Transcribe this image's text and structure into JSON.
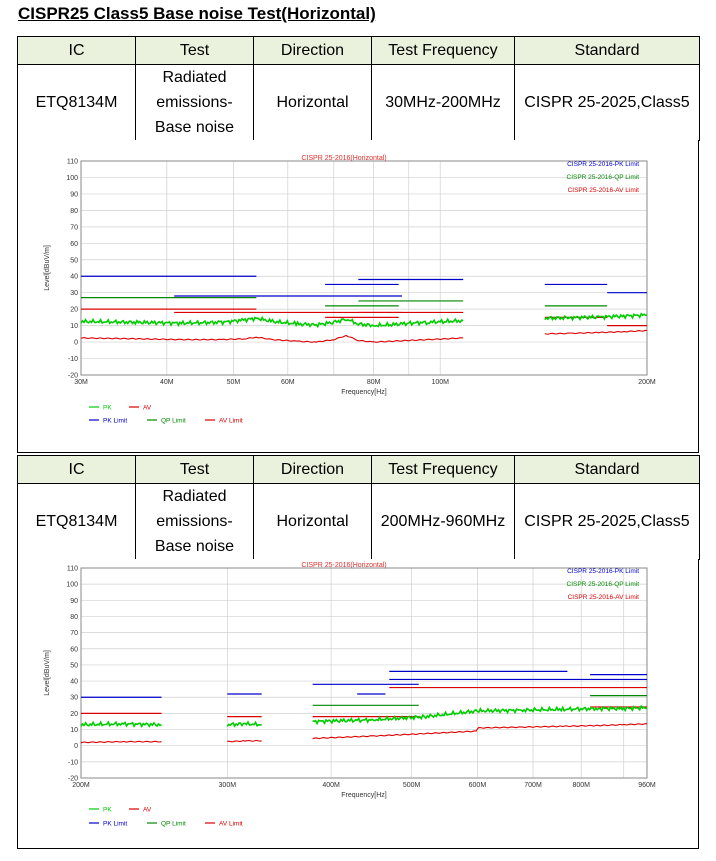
{
  "title": "CISPR25 Class5 Base noise Test(Horizontal)",
  "sections": [
    {
      "table": {
        "headers": [
          "IC",
          "Test",
          "Direction",
          "Test Frequency",
          "Standard"
        ],
        "row": {
          "ic": "ETQ8134M",
          "test": [
            "Radiated",
            "emissions-",
            "Base noise"
          ],
          "direction": "Horizontal",
          "frequency": "30MHz-200MHz",
          "standard": "CISPR 25-2025,Class5"
        }
      },
      "chart_data": {
        "type": "line",
        "title": "CISPR 25-2016(Horizontal)",
        "xlabel": "Frequency[Hz]",
        "ylabel": "Level[dBuV/m]",
        "x_scale": "log",
        "xlim": [
          30,
          200
        ],
        "ylim": [
          -20,
          110
        ],
        "x_ticks": [
          30,
          40,
          50,
          60,
          80,
          100,
          200
        ],
        "x_tick_labels": [
          "30M",
          "40M",
          "50M",
          "60M",
          "80M",
          "100M",
          "200M"
        ],
        "y_ticks": [
          -20,
          -10,
          0,
          10,
          20,
          30,
          40,
          50,
          60,
          70,
          80,
          90,
          100,
          110
        ],
        "grid": true,
        "legend_top_right": [
          "CISPR 25-2016-PK Limit",
          "CISPR 25-2016-QP Limit",
          "CISPR 25-2016-AV Limit"
        ],
        "legend_bottom": [
          "PK",
          "AV",
          "PK Limit",
          "QP Limit",
          "AV Limit"
        ],
        "colors": {
          "pk": "#00cc00",
          "av": "#dd0000",
          "pk_limit": "#0000cc",
          "qp_limit": "#008800",
          "av_limit": "#dd0000",
          "title": "#e03030",
          "grid": "#d0d0d0"
        },
        "limits": {
          "pk": [
            {
              "x": [
                30,
                54
              ],
              "y": 40
            },
            {
              "x": [
                41,
                88
              ],
              "y": 28
            },
            {
              "x": [
                68,
                87
              ],
              "y": 35
            },
            {
              "x": [
                76,
                108
              ],
              "y": 38
            },
            {
              "x": [
                142,
                175
              ],
              "y": 35
            },
            {
              "x": [
                175,
                200
              ],
              "y": 30
            }
          ],
          "qp": [
            {
              "x": [
                30,
                54
              ],
              "y": 27
            },
            {
              "x": [
                68,
                87
              ],
              "y": 22
            },
            {
              "x": [
                76,
                108
              ],
              "y": 25
            },
            {
              "x": [
                142,
                175
              ],
              "y": 22
            }
          ],
          "av": [
            {
              "x": [
                30,
                54
              ],
              "y": 20
            },
            {
              "x": [
                41,
                88
              ],
              "y": 18
            },
            {
              "x": [
                68,
                87
              ],
              "y": 15
            },
            {
              "x": [
                76,
                108
              ],
              "y": 18
            },
            {
              "x": [
                142,
                175
              ],
              "y": 15
            },
            {
              "x": [
                175,
                200
              ],
              "y": 10
            }
          ]
        },
        "series": [
          {
            "name": "PK",
            "segments": [
              {
                "x": [
                  30,
                  36,
                  42,
                  48,
                  52,
                  54,
                  57,
                  62,
                  66,
                  70,
                  73,
                  76,
                  80,
                  85,
                  90,
                  96,
                  102,
                  108
                ],
                "y": [
                  12.5,
                  12,
                  11.5,
                  12,
                  13.5,
                  14.5,
                  12.5,
                  11,
                  10.5,
                  12,
                  14,
                  11,
                  10,
                  10.5,
                  11.5,
                  12,
                  12.5,
                  13
                ]
              },
              {
                "x": [
                  142,
                  155,
                  170,
                  185,
                  200
                ],
                "y": [
                  14.5,
                  14.8,
                  15.2,
                  15.8,
                  16.5
                ]
              }
            ]
          },
          {
            "name": "AV",
            "segments": [
              {
                "x": [
                  30,
                  36,
                  42,
                  48,
                  52,
                  54,
                  57,
                  62,
                  66,
                  70,
                  73,
                  76,
                  80,
                  85,
                  90,
                  96,
                  102,
                  108
                ],
                "y": [
                  2.5,
                  2,
                  1.5,
                  1.5,
                  2,
                  3,
                  1.5,
                  0.5,
                  0,
                  1.5,
                  4,
                  1,
                  0,
                  0.5,
                  1,
                  1.5,
                  2,
                  2.5
                ]
              },
              {
                "x": [
                  142,
                  155,
                  170,
                  185,
                  200
                ],
                "y": [
                  5,
                  5.3,
                  5.8,
                  6.3,
                  7
                ]
              }
            ]
          }
        ]
      }
    },
    {
      "table": {
        "headers": [
          "IC",
          "Test",
          "Direction",
          "Test Frequency",
          "Standard"
        ],
        "row": {
          "ic": "ETQ8134M",
          "test": [
            "Radiated",
            "emissions-",
            "Base noise"
          ],
          "direction": "Horizontal",
          "frequency": "200MHz-960MHz",
          "standard": "CISPR 25-2025,Class5"
        }
      },
      "chart_data": {
        "type": "line",
        "title": "CISPR 25-2016(Horizontal)",
        "xlabel": "Frequency[Hz]",
        "ylabel": "Level[dBuV/m]",
        "x_scale": "log",
        "xlim": [
          200,
          960
        ],
        "ylim": [
          -20,
          110
        ],
        "x_ticks": [
          200,
          300,
          400,
          500,
          600,
          700,
          800,
          960
        ],
        "x_tick_labels": [
          "200M",
          "300M",
          "400M",
          "500M",
          "600M",
          "700M",
          "800M",
          "960M"
        ],
        "y_ticks": [
          -20,
          -10,
          0,
          10,
          20,
          30,
          40,
          50,
          60,
          70,
          80,
          90,
          100,
          110
        ],
        "grid": true,
        "legend_top_right": [
          "CISPR 25-2016-PK Limit",
          "CISPR 25-2016-QP Limit",
          "CISPR 25-2016-AV Limit"
        ],
        "legend_bottom": [
          "PK",
          "AV",
          "PK Limit",
          "QP Limit",
          "AV Limit"
        ],
        "colors": {
          "pk": "#00cc00",
          "av": "#dd0000",
          "pk_limit": "#0000cc",
          "qp_limit": "#008800",
          "av_limit": "#dd0000",
          "title": "#e03030",
          "grid": "#d0d0d0"
        },
        "limits": {
          "pk": [
            {
              "x": [
                200,
                250
              ],
              "y": 30
            },
            {
              "x": [
                300,
                330
              ],
              "y": 32
            },
            {
              "x": [
                380,
                510
              ],
              "y": 38
            },
            {
              "x": [
                430,
                465
              ],
              "y": 32
            },
            {
              "x": [
                470,
                770
              ],
              "y": 46
            },
            {
              "x": [
                470,
                960
              ],
              "y": 41
            },
            {
              "x": [
                820,
                960
              ],
              "y": 44
            }
          ],
          "qp": [
            {
              "x": [
                380,
                510
              ],
              "y": 25
            },
            {
              "x": [
                820,
                960
              ],
              "y": 31
            }
          ],
          "av": [
            {
              "x": [
                200,
                250
              ],
              "y": 20
            },
            {
              "x": [
                300,
                330
              ],
              "y": 18
            },
            {
              "x": [
                380,
                510
              ],
              "y": 18
            },
            {
              "x": [
                470,
                960
              ],
              "y": 36
            },
            {
              "x": [
                820,
                960
              ],
              "y": 24
            }
          ]
        },
        "series": [
          {
            "name": "PK",
            "segments": [
              {
                "x": [
                  200,
                  225,
                  250
                ],
                "y": [
                  13,
                  13.5,
                  13
                ]
              },
              {
                "x": [
                  300,
                  315,
                  330
                ],
                "y": [
                  13,
                  13.5,
                  13
                ]
              },
              {
                "x": [
                  380,
                  450,
                  520,
                  600,
                  680,
                  760,
                  840,
                  900,
                  960
                ],
                "y": [
                  15,
                  16,
                  18,
                  21.5,
                  22,
                  22.5,
                  23,
                  23,
                  23.5
                ]
              }
            ]
          },
          {
            "name": "AV",
            "segments": [
              {
                "x": [
                  200,
                  225,
                  250
                ],
                "y": [
                  2,
                  2.5,
                  2.5
                ]
              },
              {
                "x": [
                  300,
                  315,
                  330
                ],
                "y": [
                  2.5,
                  3,
                  3
                ]
              },
              {
                "x": [
                  380,
                  450,
                  520,
                  598,
                  602,
                  680,
                  760,
                  840,
                  900,
                  960
                ],
                "y": [
                  4.5,
                  6,
                  7.5,
                  9,
                  11,
                  11.5,
                  12,
                  12.5,
                  13,
                  13.5
                ]
              }
            ]
          }
        ]
      }
    }
  ]
}
